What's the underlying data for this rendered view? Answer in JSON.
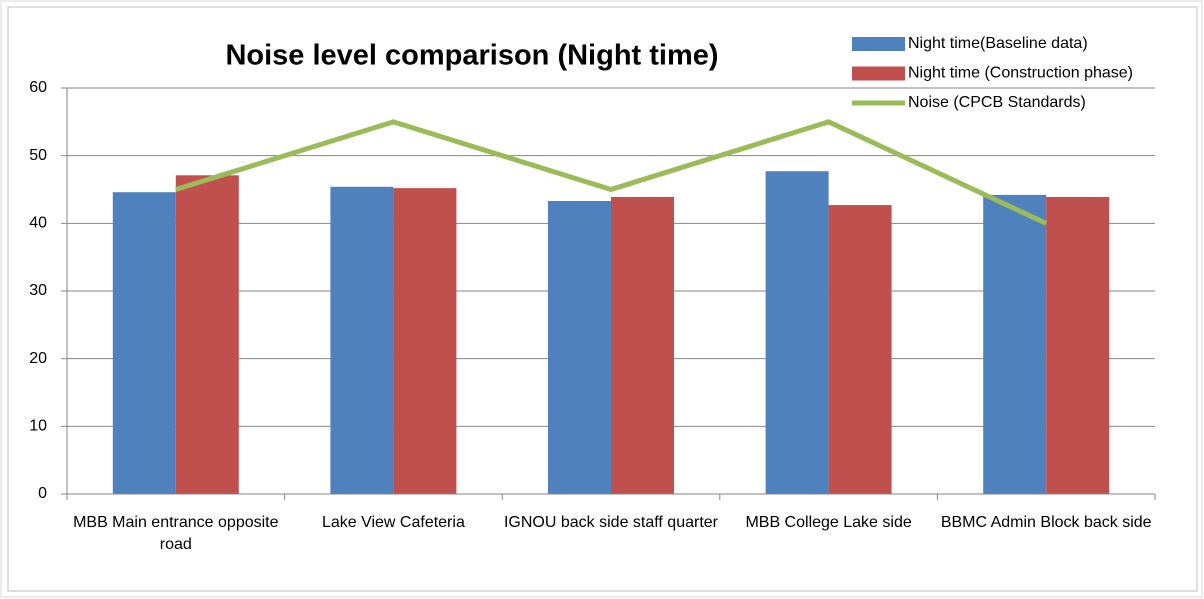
{
  "chart_data": {
    "type": "bar",
    "title": "Noise level comparison (Night time)",
    "categories": [
      "MBB Main entrance opposite road",
      "Lake View Cafeteria",
      "IGNOU back side staff quarter",
      "MBB College Lake side",
      "BBMC Admin Block back side"
    ],
    "series": [
      {
        "name": "Night time(Baseline data)",
        "color": "#4f81bd",
        "type": "bar",
        "values": [
          44.6,
          45.4,
          43.3,
          47.7,
          44.2
        ]
      },
      {
        "name": "Night time (Construction phase)",
        "color": "#c0504d",
        "type": "bar",
        "values": [
          47.1,
          45.2,
          43.9,
          42.7,
          43.9
        ]
      },
      {
        "name": "Noise (CPCB Standards)",
        "color": "#9bbb59",
        "type": "line",
        "values": [
          45,
          55,
          45,
          55,
          40
        ]
      }
    ],
    "ylim": [
      0,
      60
    ],
    "yticks": [
      0,
      10,
      20,
      30,
      40,
      50,
      60
    ],
    "grid": true,
    "legend": "top-right"
  }
}
